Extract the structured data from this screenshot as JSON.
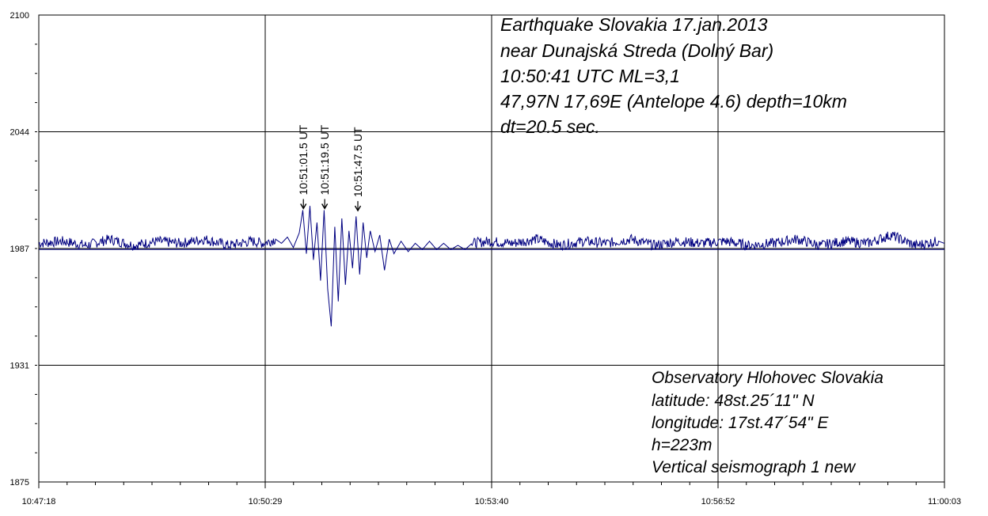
{
  "chart_data": {
    "type": "line",
    "title": "",
    "xlabel": "",
    "ylabel": "",
    "ylim": [
      1875,
      2100
    ],
    "y_ticks": [
      "2100",
      "2044",
      "1987",
      "1931",
      "1875"
    ],
    "x_ticks": [
      "10:47:18",
      "10:50:29",
      "10:53:40",
      "10:56:52",
      "11:00:03"
    ],
    "grid": true,
    "baseline": 1987,
    "series_color": "#000080",
    "grid_color": "#000000",
    "event_info": [
      "Earthquake Slovakia  17.jan.2013",
      "near Dunajská Streda (Dolný Bar)",
      "10:50:41 UTC      ML=3,1",
      "47,97N  17,69E  (Antelope 4.6) depth=10km",
      "dt=20.5 sec."
    ],
    "station_info": [
      "Observatory Hlohovec   Slovakia",
      "latitude:     48st.25´11\" N",
      "longitude: 17st.47´54\" E",
      "h=223m",
      "Vertical seismograph 1 new"
    ],
    "markers": [
      {
        "label": "10:51:01.5 UT",
        "time_s": 223.5,
        "value": 2006
      },
      {
        "label": "10:51:19.5 UT",
        "time_s": 241.5,
        "value": 2006
      },
      {
        "label": "10:51:47.5 UT",
        "time_s": 269.5,
        "value": 2005
      }
    ],
    "series": [
      {
        "x_start_s": 0,
        "x_end_s": 765,
        "points": [
          [
            0,
            1990
          ],
          [
            20,
            1991
          ],
          [
            40,
            1989
          ],
          [
            60,
            1992
          ],
          [
            80,
            1989
          ],
          [
            100,
            1991
          ],
          [
            120,
            1990
          ],
          [
            140,
            1992
          ],
          [
            160,
            1989
          ],
          [
            180,
            1991
          ],
          [
            190,
            1990
          ],
          [
            200,
            1992
          ],
          [
            205,
            1990
          ],
          [
            210,
            1993
          ],
          [
            215,
            1988
          ],
          [
            220,
            1995
          ],
          [
            223,
            2006
          ],
          [
            226,
            1985
          ],
          [
            229,
            2008
          ],
          [
            232,
            1982
          ],
          [
            235,
            2000
          ],
          [
            238,
            1972
          ],
          [
            241,
            2006
          ],
          [
            244,
            1968
          ],
          [
            247,
            1950
          ],
          [
            250,
            1998
          ],
          [
            253,
            1962
          ],
          [
            256,
            2002
          ],
          [
            259,
            1970
          ],
          [
            262,
            1996
          ],
          [
            265,
            1978
          ],
          [
            268,
            2003
          ],
          [
            271,
            1975
          ],
          [
            274,
            2000
          ],
          [
            277,
            1983
          ],
          [
            280,
            1996
          ],
          [
            284,
            1986
          ],
          [
            288,
            1994
          ],
          [
            292,
            1977
          ],
          [
            296,
            1992
          ],
          [
            300,
            1985
          ],
          [
            306,
            1991
          ],
          [
            312,
            1986
          ],
          [
            318,
            1990
          ],
          [
            324,
            1987
          ],
          [
            330,
            1991
          ],
          [
            336,
            1987
          ],
          [
            342,
            1990
          ],
          [
            348,
            1987
          ],
          [
            354,
            1989
          ],
          [
            360,
            1987
          ],
          [
            366,
            1990
          ],
          [
            380,
            1991
          ],
          [
            400,
            1990
          ],
          [
            420,
            1992
          ],
          [
            440,
            1989
          ],
          [
            460,
            1991
          ],
          [
            480,
            1990
          ],
          [
            500,
            1992
          ],
          [
            520,
            1989
          ],
          [
            540,
            1991
          ],
          [
            560,
            1990
          ],
          [
            580,
            1991
          ],
          [
            600,
            1989
          ],
          [
            620,
            1990
          ],
          [
            640,
            1992
          ],
          [
            660,
            1989
          ],
          [
            680,
            1991
          ],
          [
            700,
            1990
          ],
          [
            720,
            1994
          ],
          [
            740,
            1989
          ],
          [
            760,
            1991
          ],
          [
            765,
            1990
          ]
        ]
      }
    ]
  }
}
